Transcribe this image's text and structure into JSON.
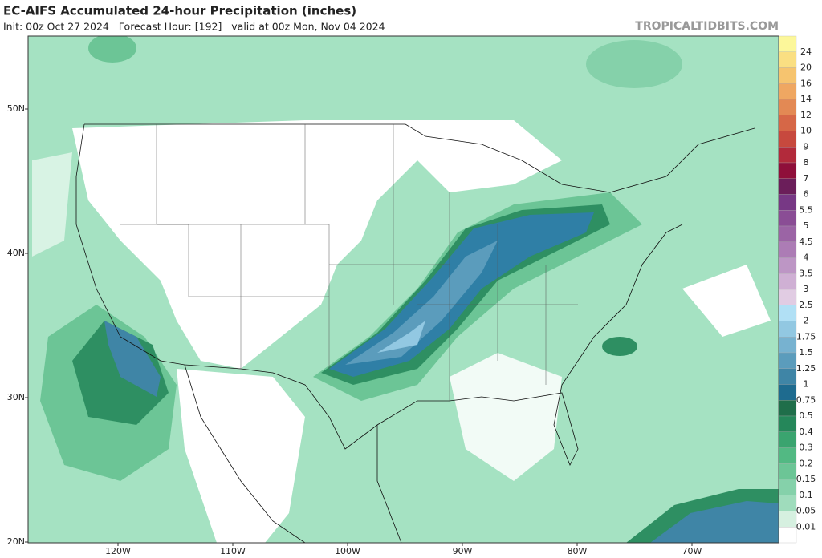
{
  "header": {
    "title": "EC-AIFS Accumulated 24-hour Precipitation (inches)",
    "subtitle": "Init: 00z Oct 27 2024   Forecast Hour: [192]   valid at 00z Mon, Nov 04 2024",
    "source": "TROPICALTIDBITS.COM"
  },
  "latitude_labels": [
    "50N",
    "40N",
    "30N",
    "20N"
  ],
  "longitude_labels": [
    "120W",
    "110W",
    "100W",
    "90W",
    "80W",
    "70W"
  ],
  "colorbar": {
    "labels": [
      "24",
      "20",
      "16",
      "14",
      "12",
      "10",
      "9",
      "8",
      "7",
      "6",
      "5.5",
      "5",
      "4.5",
      "4",
      "3.5",
      "3",
      "2.5",
      "2",
      "1.75",
      "1.5",
      "1.25",
      "1",
      "0.75",
      "0.5",
      "0.4",
      "0.3",
      "0.2",
      "0.15",
      "0.1",
      "0.05",
      "0.01"
    ]
  }
}
